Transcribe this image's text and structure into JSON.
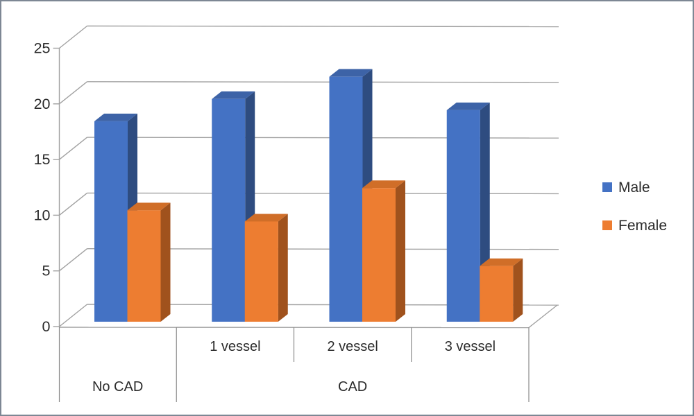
{
  "chart_data": {
    "type": "bar",
    "subtype": "3d-clustered-column",
    "title": "",
    "xlabel": "",
    "ylabel": "",
    "categories": [
      "No CAD",
      "1 vessel",
      "2 vessel",
      "3 vessel"
    ],
    "sub_labels": [
      "",
      "1 vessel",
      "2 vessel",
      "3 vessel"
    ],
    "group_labels": [
      {
        "label": "No CAD",
        "from": 0,
        "to": 1
      },
      {
        "label": "CAD",
        "from": 1,
        "to": 4
      }
    ],
    "series": [
      {
        "name": "Male",
        "values": [
          18,
          20,
          22,
          19
        ],
        "color_front": "#4472C4",
        "color_top": "#3D63A7",
        "color_side": "#2E4C80"
      },
      {
        "name": "Female",
        "values": [
          10,
          9,
          12,
          5
        ],
        "color_front": "#ED7D31",
        "color_top": "#D06E28",
        "color_side": "#A0521D"
      }
    ],
    "y_axis": {
      "min": 0,
      "max": 25,
      "step": 5,
      "tick_labels": [
        "0",
        "5",
        "10",
        "15",
        "20",
        "25"
      ]
    },
    "legend": {
      "position": "right",
      "entries": [
        "Male",
        "Female"
      ]
    },
    "grid": true,
    "colors": {
      "gridline": "#a1a1a1",
      "axis_table_line": "#8a8a8a",
      "text": "#2b2b2b"
    }
  }
}
